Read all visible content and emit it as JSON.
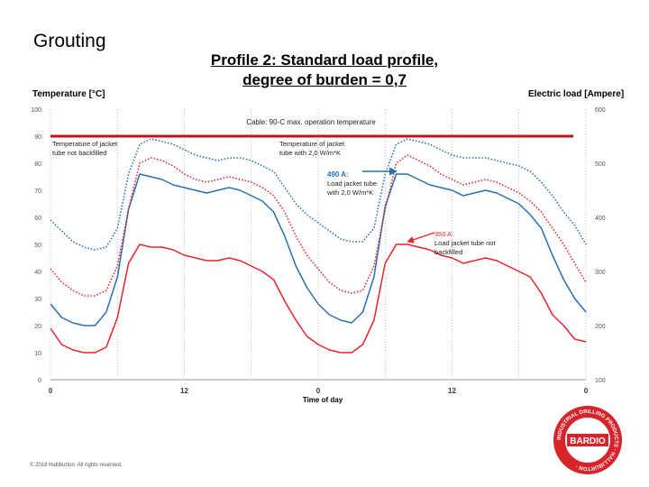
{
  "slide": {
    "label": "Grouting",
    "title_line1": "Profile 2: Standard load profile,",
    "title_line2": "degree of burden = 0,7",
    "footer": "© 2018 Halliburton. All rights reserved."
  },
  "colors": {
    "blue": "#2a6fb0",
    "red": "#e8242b",
    "dark_red": "#c0141b",
    "grid": "#9a9a9a"
  },
  "logo": {
    "text": "BARDIO",
    "ring_text": "INDUSTRIAL DRILLING PRODUCTS · HALLIBURTON ·"
  },
  "chart_data": {
    "type": "line",
    "ylabel_left": "Temperature [°C]",
    "ylabel_right": "Electric load [Ampere]",
    "xlabel": "Time of day",
    "ylim_left": [
      0,
      100
    ],
    "ylim_right": [
      100,
      600
    ],
    "yticks_left": [
      "0",
      "10",
      "20",
      "30",
      "40",
      "50",
      "60",
      "70",
      "80",
      "90",
      "100"
    ],
    "yticks_right": [
      "100",
      "200",
      "300",
      "400",
      "500",
      "600"
    ],
    "xticks": [
      "0",
      "12",
      "0",
      "12",
      "0"
    ],
    "grid": "dotted vertical",
    "hline": {
      "value": 90,
      "label": "Cable: 90◦C max. operation temperature"
    },
    "annotations": {
      "no_backfill": "Temperature of jacket tube not backfilled",
      "backfill_2": "Temperature of jacket tube with 2,0 W/m*K",
      "load_490_head": "490 A:",
      "load_490_body": "Load jacket tube with 2,0 W/m*K",
      "load_350_head": "350 A:",
      "load_350_body": "Load jacket tube not backfilled"
    },
    "x": [
      0,
      1,
      2,
      3,
      4,
      5,
      6,
      7,
      8,
      9,
      10,
      11,
      12,
      13,
      14,
      15,
      16,
      17,
      18,
      19,
      20,
      21,
      22,
      23,
      24,
      25,
      26,
      27,
      28,
      29,
      30,
      31,
      32,
      33,
      34,
      35,
      36,
      37,
      38,
      39,
      40,
      41,
      42,
      43,
      44,
      45,
      46,
      47,
      48
    ],
    "series": [
      {
        "style": "solid",
        "color": "red",
        "values": [
          19,
          13,
          11,
          10,
          10,
          12,
          23,
          43,
          50,
          49,
          49,
          48,
          46,
          45,
          44,
          44,
          45,
          44,
          42,
          40,
          37,
          29,
          22,
          16,
          13,
          11,
          10,
          10,
          13,
          22,
          43,
          50,
          50,
          49,
          48,
          46,
          45,
          43,
          44,
          45,
          44,
          42,
          40,
          38,
          32,
          24,
          20,
          15,
          14
        ]
      },
      {
        "style": "solid",
        "color": "blue",
        "values": [
          28,
          23,
          21,
          20,
          20,
          25,
          38,
          63,
          76,
          75,
          74,
          72,
          71,
          70,
          69,
          70,
          71,
          70,
          68,
          66,
          62,
          53,
          42,
          34,
          28,
          24,
          22,
          21,
          25,
          38,
          64,
          76,
          76,
          74,
          72,
          71,
          70,
          68,
          69,
          70,
          69,
          67,
          65,
          61,
          56,
          46,
          37,
          30,
          25
        ]
      },
      {
        "style": "dotted",
        "color": "red",
        "values": [
          41,
          36,
          33,
          31,
          31,
          33,
          42,
          63,
          80,
          82,
          81,
          79,
          76,
          74,
          73,
          74,
          75,
          74,
          73,
          71,
          68,
          62,
          53,
          46,
          41,
          36,
          33,
          32,
          33,
          42,
          63,
          80,
          83,
          81,
          79,
          76,
          74,
          72,
          73,
          74,
          73,
          71,
          69,
          66,
          62,
          56,
          50,
          43,
          36
        ]
      },
      {
        "style": "dotted",
        "color": "blue",
        "values": [
          59,
          55,
          51,
          49,
          48,
          49,
          56,
          76,
          87,
          89,
          88,
          87,
          85,
          83,
          82,
          81,
          82,
          82,
          81,
          79,
          77,
          71,
          65,
          61,
          58,
          55,
          52,
          51,
          51,
          56,
          76,
          87,
          89,
          88,
          87,
          85,
          83,
          82,
          82,
          82,
          81,
          80,
          79,
          77,
          73,
          68,
          62,
          57,
          50
        ]
      }
    ]
  }
}
